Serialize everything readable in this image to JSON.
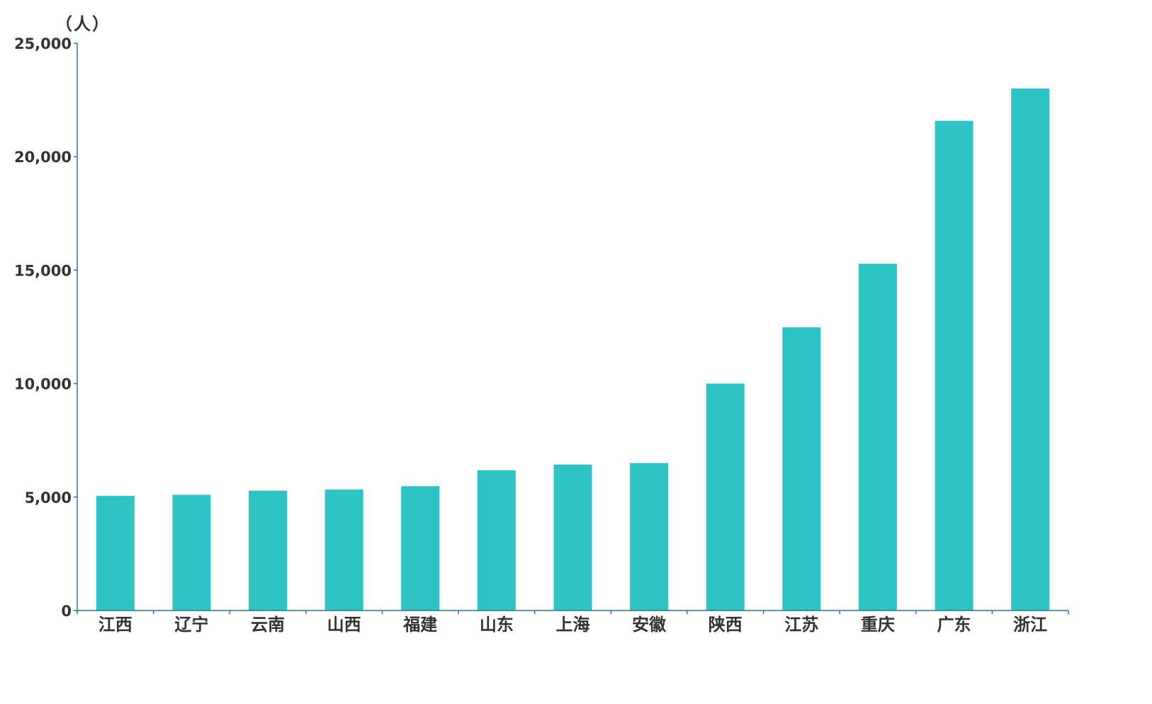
{
  "chart_data": {
    "type": "bar",
    "unit_label": "（人）",
    "categories": [
      "江西",
      "辽宁",
      "云南",
      "山西",
      "福建",
      "山东",
      "上海",
      "安徽",
      "陕西",
      "江苏",
      "重庆",
      "广东",
      "浙江"
    ],
    "values": [
      5050,
      5100,
      5280,
      5330,
      5480,
      6180,
      6430,
      6500,
      10000,
      12480,
      15280,
      21580,
      23000
    ],
    "ylim": [
      0,
      25000
    ],
    "yticks": [
      0,
      5000,
      10000,
      15000,
      20000,
      25000
    ],
    "ytick_labels": [
      "0",
      "5,000",
      "10,000",
      "15,000",
      "20,000",
      "25,000"
    ],
    "grid": false,
    "colors": {
      "bar": "#2EC4C6",
      "axis": "#2a7a8a",
      "text": "#333333"
    }
  }
}
